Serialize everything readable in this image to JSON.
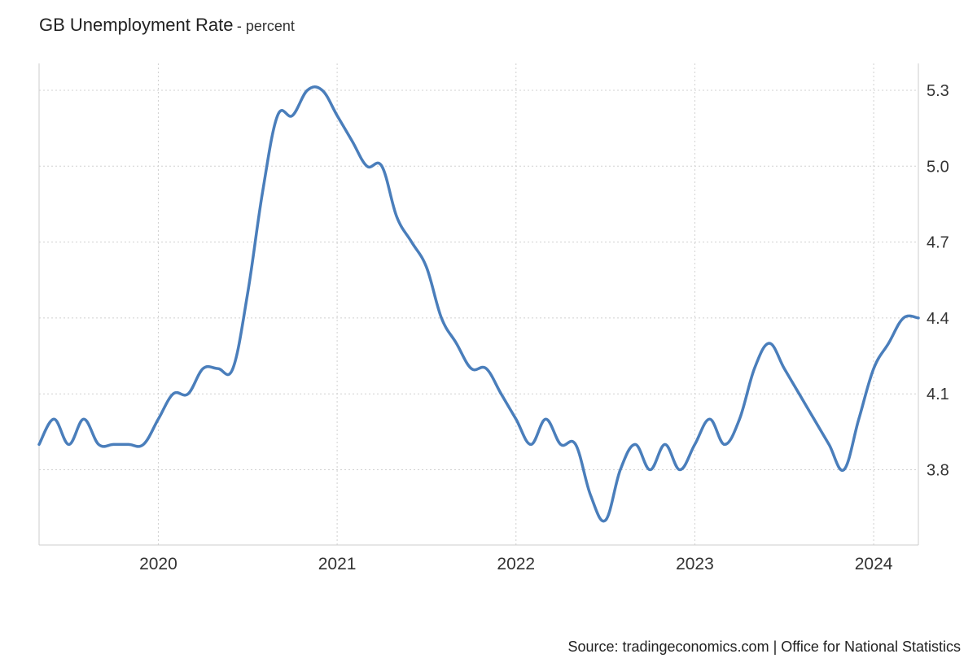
{
  "chart_data": {
    "type": "line",
    "title": "GB Unemployment Rate",
    "subtitle": "- percent",
    "xlabel": "",
    "ylabel": "",
    "x_ticks": [
      "2020",
      "2021",
      "2022",
      "2023",
      "2024"
    ],
    "y_ticks": [
      "3.8",
      "4.1",
      "4.4",
      "4.7",
      "5.0",
      "5.3"
    ],
    "ylim": [
      3.5,
      5.4
    ],
    "xlim": [
      "2019-05",
      "2024-04"
    ],
    "grid": true,
    "series": [
      {
        "color": "#4a7ebb",
        "x": [
          "2019-05",
          "2019-06",
          "2019-07",
          "2019-08",
          "2019-09",
          "2019-10",
          "2019-11",
          "2019-12",
          "2020-01",
          "2020-02",
          "2020-03",
          "2020-04",
          "2020-05",
          "2020-06",
          "2020-07",
          "2020-08",
          "2020-09",
          "2020-10",
          "2020-11",
          "2020-12",
          "2021-01",
          "2021-02",
          "2021-03",
          "2021-04",
          "2021-05",
          "2021-06",
          "2021-07",
          "2021-08",
          "2021-09",
          "2021-10",
          "2021-11",
          "2021-12",
          "2022-01",
          "2022-02",
          "2022-03",
          "2022-04",
          "2022-05",
          "2022-06",
          "2022-07",
          "2022-08",
          "2022-09",
          "2022-10",
          "2022-11",
          "2022-12",
          "2023-01",
          "2023-02",
          "2023-03",
          "2023-04",
          "2023-05",
          "2023-06",
          "2023-07",
          "2023-08",
          "2023-09",
          "2023-10",
          "2023-11",
          "2023-12",
          "2024-01",
          "2024-02",
          "2024-03",
          "2024-04"
        ],
        "values": [
          3.9,
          4.0,
          3.9,
          4.0,
          3.9,
          3.9,
          3.9,
          3.9,
          4.0,
          4.1,
          4.1,
          4.2,
          4.2,
          4.2,
          4.5,
          4.9,
          5.2,
          5.2,
          5.3,
          5.3,
          5.2,
          5.1,
          5.0,
          5.0,
          4.8,
          4.7,
          4.6,
          4.4,
          4.3,
          4.2,
          4.2,
          4.1,
          4.0,
          3.9,
          4.0,
          3.9,
          3.9,
          3.7,
          3.6,
          3.8,
          3.9,
          3.8,
          3.9,
          3.8,
          3.9,
          4.0,
          3.9,
          4.0,
          4.2,
          4.3,
          4.2,
          4.1,
          4.0,
          3.9,
          3.8,
          4.0,
          4.2,
          4.3,
          4.4,
          4.4
        ]
      }
    ],
    "source": "Source: tradingeconomics.com | Office for National Statistics"
  },
  "colors": {
    "line": "#4a7ebb",
    "grid": "#d0d0d0",
    "axis": "#cccccc",
    "text": "#333333"
  }
}
